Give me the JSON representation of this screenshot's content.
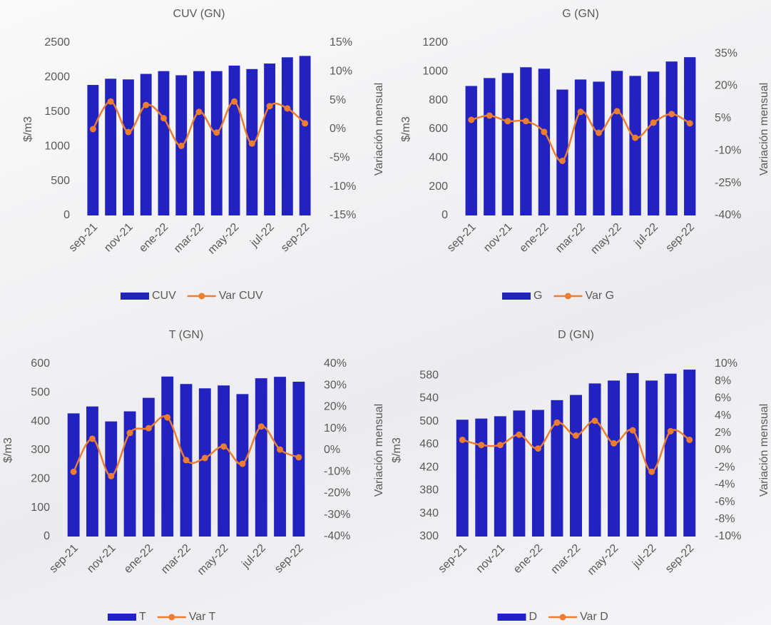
{
  "chart_data": [
    {
      "type": "bar",
      "title": "CUV (GN)",
      "y_label": "$/m3",
      "y2_label": "Variación mensual",
      "categories": [
        "sep-21",
        null,
        "nov-21",
        null,
        "ene-22",
        null,
        "mar-22",
        null,
        "may-22",
        null,
        "jul-22",
        null,
        "sep-22"
      ],
      "series": [
        {
          "name": "CUV",
          "color": "#2222c0",
          "type": "bar",
          "values": [
            1890,
            1980,
            1970,
            2050,
            2090,
            2030,
            2090,
            2090,
            2170,
            2120,
            2200,
            2290,
            2310
          ]
        },
        {
          "name": "Var CUV",
          "color": "#ed7d31",
          "type": "line",
          "axis": "y2",
          "values": [
            0,
            4.8,
            -0.5,
            4.2,
            1.9,
            -2.9,
            3.0,
            -0.6,
            4.8,
            -2.5,
            4.0,
            3.6,
            1.0
          ]
        }
      ],
      "ylim": [
        0,
        2500
      ],
      "yticks": [
        0,
        500,
        1000,
        1500,
        2000,
        2500
      ],
      "y2lim": [
        -15,
        15
      ],
      "y2ticks": [
        {
          "value": -15,
          "label": "-15%"
        },
        {
          "value": -10,
          "label": "-10%"
        },
        {
          "value": -5,
          "label": "-5%"
        },
        {
          "value": 0,
          "label": "0%"
        },
        {
          "value": 5,
          "label": "5%"
        },
        {
          "value": 10,
          "label": "10%"
        },
        {
          "value": 15,
          "label": "15%"
        }
      ]
    },
    {
      "type": "bar",
      "title": "G (GN)",
      "y_label": "$/m3",
      "y2_label": "Variación mensual",
      "categories": [
        "sep-21",
        null,
        "nov-21",
        null,
        "ene-22",
        null,
        "mar-22",
        null,
        "may-22",
        null,
        "jul-22",
        null,
        "sep-22"
      ],
      "series": [
        {
          "name": "G",
          "color": "#2222c0",
          "type": "bar",
          "values": [
            900,
            955,
            990,
            1030,
            1020,
            875,
            945,
            930,
            1005,
            970,
            1000,
            1070,
            1100
          ]
        },
        {
          "name": "Var G",
          "color": "#ed7d31",
          "type": "line",
          "axis": "y2",
          "values": [
            4.3,
            6.3,
            3.7,
            3.7,
            -1.3,
            -14.7,
            8,
            -1.7,
            8.3,
            -4,
            3,
            7,
            2.7
          ]
        }
      ],
      "ylim": [
        0,
        1200
      ],
      "yticks": [
        0,
        200,
        400,
        600,
        800,
        1000,
        1200
      ],
      "y2lim": [
        -40,
        40
      ],
      "y2ticks": [
        {
          "value": -40,
          "label": "-40%"
        },
        {
          "value": -25,
          "label": "-25%"
        },
        {
          "value": -10,
          "label": "-10%"
        },
        {
          "value": 5,
          "label": "5%"
        },
        {
          "value": 20,
          "label": "20%"
        },
        {
          "value": 35,
          "label": "35%"
        }
      ]
    },
    {
      "type": "bar",
      "title": "T (GN)",
      "y_label": "$/m3",
      "y2_label": "Variación mensual",
      "categories": [
        "sep-21",
        null,
        "nov-21",
        null,
        "ene-22",
        null,
        "mar-22",
        null,
        "may-22",
        null,
        "jul-22",
        null,
        "sep-22"
      ],
      "series": [
        {
          "name": "T",
          "color": "#2222c0",
          "type": "bar",
          "values": [
            428,
            452,
            400,
            435,
            482,
            556,
            530,
            515,
            525,
            495,
            550,
            555,
            538
          ]
        },
        {
          "name": "Var T",
          "color": "#ed7d31",
          "type": "line",
          "axis": "y2",
          "values": [
            -10,
            5.3,
            -12,
            8,
            10.2,
            15.2,
            -4.6,
            -3.6,
            1.7,
            -6.3,
            11,
            0.3,
            -3.3
          ]
        }
      ],
      "ylim": [
        0,
        600
      ],
      "yticks": [
        0,
        100,
        200,
        300,
        400,
        500,
        600
      ],
      "y2lim": [
        -40,
        40
      ],
      "y2ticks": [
        {
          "value": -40,
          "label": "-40%"
        },
        {
          "value": -30,
          "label": "-30%"
        },
        {
          "value": -20,
          "label": "-20%"
        },
        {
          "value": -10,
          "label": "-10%"
        },
        {
          "value": 0,
          "label": "0%"
        },
        {
          "value": 10,
          "label": "10%"
        },
        {
          "value": 20,
          "label": "20%"
        },
        {
          "value": 30,
          "label": "30%"
        },
        {
          "value": 40,
          "label": "40%"
        }
      ]
    },
    {
      "type": "bar",
      "title": "D (GN)",
      "y_label": "$/m3",
      "y2_label": "Variación mensual",
      "categories": [
        "sep-21",
        null,
        "nov-21",
        null,
        "ene-22",
        null,
        "mar-22",
        null,
        "may-22",
        null,
        "jul-22",
        null,
        "sep-22"
      ],
      "series": [
        {
          "name": "D",
          "color": "#2222c0",
          "type": "bar",
          "values": [
            503,
            505,
            509,
            519,
            520,
            537,
            546,
            566,
            571,
            584,
            571,
            583,
            590
          ]
        },
        {
          "name": "Var D",
          "color": "#ed7d31",
          "type": "line",
          "axis": "y2",
          "values": [
            1.2,
            0.6,
            0.6,
            1.8,
            0.2,
            3.2,
            1.7,
            3.4,
            0.8,
            2.3,
            -2.5,
            2.2,
            1.2
          ]
        }
      ],
      "ylim": [
        300,
        600
      ],
      "yticks": [
        300,
        340,
        380,
        420,
        460,
        500,
        540,
        580
      ],
      "y2lim": [
        -10,
        10
      ],
      "y2ticks": [
        {
          "value": -10,
          "label": "-10%"
        },
        {
          "value": -8,
          "label": "-8%"
        },
        {
          "value": -6,
          "label": "-6%"
        },
        {
          "value": -4,
          "label": "-4%"
        },
        {
          "value": -2,
          "label": "-2%"
        },
        {
          "value": 0,
          "label": "0%"
        },
        {
          "value": 2,
          "label": "2%"
        },
        {
          "value": 4,
          "label": "4%"
        },
        {
          "value": 6,
          "label": "6%"
        },
        {
          "value": 8,
          "label": "8%"
        },
        {
          "value": 10,
          "label": "10%"
        }
      ]
    }
  ]
}
